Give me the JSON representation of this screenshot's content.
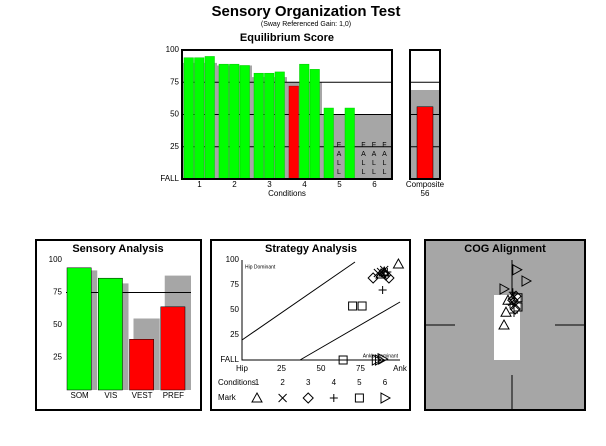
{
  "title": "Sensory Organization Test",
  "subtitle": "(Sway Referenced Gain: 1,0)",
  "chart_data": [
    {
      "type": "bar",
      "title": "Equilibrium Score",
      "x_label": "Conditions",
      "categories": [
        "1",
        "2",
        "3",
        "4",
        "5",
        "6"
      ],
      "series": [
        {
          "values": [
            94,
            89,
            82,
            72,
            55,
            0
          ],
          "value_labels": [
            null,
            null,
            null,
            null,
            null,
            "FALL"
          ],
          "colors": [
            "#00ff00",
            "#00ff00",
            "#00ff00",
            "#ff0000",
            "#00ff00",
            "#00ff00"
          ]
        },
        {
          "values": [
            94,
            89,
            82,
            89,
            0,
            0
          ],
          "value_labels": [
            null,
            null,
            null,
            null,
            "FALL",
            "FALL"
          ],
          "colors": [
            "#00ff00",
            "#00ff00",
            "#00ff00",
            "#00ff00",
            "#00ff00",
            "#00ff00"
          ]
        },
        {
          "values": [
            95,
            88,
            83,
            85,
            55,
            0
          ],
          "value_labels": [
            null,
            null,
            null,
            null,
            null,
            "FALL"
          ],
          "colors": [
            "#00ff00",
            "#00ff00",
            "#00ff00",
            "#00ff00",
            "#00ff00",
            "#00ff00"
          ]
        }
      ],
      "normative": [
        90,
        88,
        79,
        75,
        50,
        50
      ],
      "normative_color": "#a6a6a6",
      "ylim": [
        0,
        100
      ],
      "yticks": [
        {
          "value": 0,
          "label": "FALL"
        },
        25,
        50,
        75,
        100
      ],
      "grid": true,
      "composite": {
        "label": "Composite",
        "value": 56,
        "normative": 69,
        "color": "#ff0000"
      }
    },
    {
      "type": "bar",
      "title": "Sensory Analysis",
      "categories": [
        "SOM",
        "VIS",
        "VEST",
        "PREF"
      ],
      "series": [
        {
          "values": [
            94,
            86,
            39,
            64
          ],
          "colors": [
            "#00ff00",
            "#00ff00",
            "#ff0000",
            "#ff0000"
          ]
        }
      ],
      "normative": [
        92,
        82,
        55,
        88
      ],
      "normative_color": "#a6a6a6",
      "ylim": [
        0,
        100
      ],
      "yticks": [
        25,
        50,
        75,
        100
      ],
      "reference_line": 75
    },
    {
      "type": "scatter",
      "title": "Strategy Analysis",
      "annotations": [
        "Hip Dominant",
        "Ankle Dominant"
      ],
      "legend_title": "Conditions",
      "marker_label": "Mark",
      "xlim": [
        0,
        100
      ],
      "xticks": [
        {
          "value": 0,
          "label": "Hip"
        },
        25,
        50,
        75,
        {
          "value": 100,
          "label": "Ank"
        }
      ],
      "ylim": [
        0,
        100
      ],
      "yticks": [
        {
          "value": 0,
          "label": "FALL"
        },
        25,
        50,
        75,
        100
      ],
      "series": [
        {
          "name": "1",
          "marker": "triangle",
          "x": [
            99,
            90,
            88
          ],
          "y": [
            96,
            88,
            86
          ]
        },
        {
          "name": "2",
          "marker": "x",
          "x": [
            88,
            90,
            86
          ],
          "y": [
            88,
            90,
            87
          ]
        },
        {
          "name": "3",
          "marker": "diamond",
          "x": [
            83,
            91,
            93
          ],
          "y": [
            82,
            85,
            82
          ]
        },
        {
          "name": "4",
          "marker": "plus",
          "x": [
            89,
            92,
            90
          ],
          "y": [
            70,
            88,
            85
          ]
        },
        {
          "name": "5",
          "marker": "square",
          "x": [
            70,
            76,
            64
          ],
          "y": [
            54,
            54,
            0
          ]
        },
        {
          "name": "6",
          "marker": "right-triangle",
          "x": [
            85,
            87,
            89
          ],
          "y": [
            0,
            0,
            1
          ]
        }
      ]
    },
    {
      "type": "scatter",
      "title": "COG Alignment",
      "background": "#a6a6a6",
      "xlim": [
        -10,
        10
      ],
      "ylim": [
        -10,
        10
      ],
      "series": [
        {
          "marker": "triangle",
          "x": [
            -0.75,
            -1,
            -0.5
          ],
          "y": [
            1.6,
            0,
            3.1
          ]
        },
        {
          "marker": "x",
          "x": [
            0.25,
            0,
            0.4
          ],
          "y": [
            3.5,
            2.9,
            2.4
          ]
        },
        {
          "marker": "diamond",
          "x": [
            0.5,
            0.1,
            0.4
          ],
          "y": [
            3.6,
            3.1,
            2
          ]
        },
        {
          "marker": "plus",
          "x": [
            0.25,
            -0.25,
            0.1
          ],
          "y": [
            1.5,
            2.6,
            4.1
          ]
        },
        {
          "marker": "square",
          "x": [
            0.75,
            0.75
          ],
          "y": [
            3.4,
            2.25
          ]
        },
        {
          "marker": "right-triangle",
          "x": [
            0.6,
            1.75,
            -1
          ],
          "y": [
            6.9,
            5.5,
            4.5
          ]
        }
      ]
    }
  ]
}
